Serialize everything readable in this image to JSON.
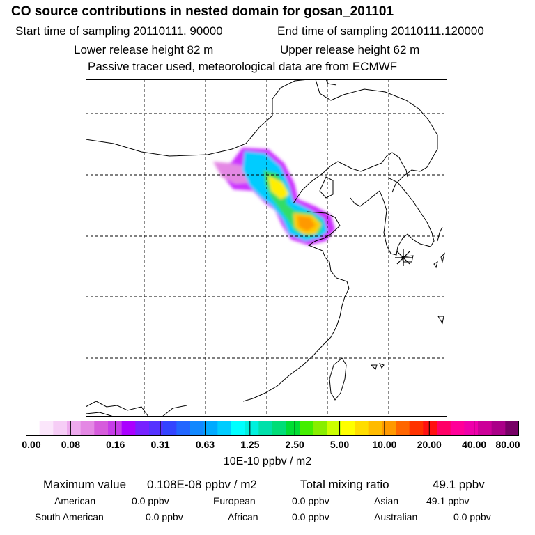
{
  "header": {
    "title": "CO  source contributions in nested domain for gosan_201101",
    "start_label": "Start time of sampling 20110111. 90000",
    "end_label": "End time of sampling 20110111.120000",
    "lower_label": "Lower release height   82 m",
    "upper_label": "Upper release height   62 m",
    "note": "Passive tracer used, meteorological data are from ECMWF"
  },
  "map": {
    "receptor_marker": "star-marker",
    "grid_style": "dashed",
    "plume_colors": [
      "#cc33ff",
      "#00d8ff",
      "#33cc66",
      "#ffee00",
      "#ff9900"
    ]
  },
  "colorbar": {
    "segments": [
      "#ffffff",
      "#fbe6fb",
      "#f6cdf6",
      "#eeaaee",
      "#e488e4",
      "#d65cdc",
      "#c63ce8",
      "#aa00ff",
      "#7722ff",
      "#5533ff",
      "#3344ff",
      "#2266ff",
      "#1188ff",
      "#00aaff",
      "#00ccff",
      "#00ffff",
      "#00f0dd",
      "#00e0aa",
      "#00dd77",
      "#00dd33",
      "#44ee00",
      "#88ee00",
      "#ccff00",
      "#ffff00",
      "#ffdd00",
      "#ffbb00",
      "#ff9900",
      "#ff6600",
      "#ff3300",
      "#ff1111",
      "#ff0066",
      "#ff0099",
      "#ee00aa",
      "#cc0099",
      "#aa0088",
      "#770066"
    ],
    "ticks": [
      "0.00",
      "0.08",
      "0.16",
      "0.31",
      "0.63",
      "1.25",
      "2.50",
      "5.00",
      "10.00",
      "20.00",
      "40.00",
      "80.00"
    ],
    "units": "10E-10 ppbv / m2"
  },
  "stats": {
    "max_label": "Maximum value",
    "max_value": "0.108E-08 ppbv / m2",
    "total_label": "Total mixing ratio",
    "total_value": "49.1 ppbv",
    "regions": [
      {
        "name": "American",
        "value": "0.0 ppbv"
      },
      {
        "name": "European",
        "value": "0.0 ppbv"
      },
      {
        "name": "Asian",
        "value": "49.1 ppbv"
      },
      {
        "name": "South American",
        "value": "0.0 ppbv"
      },
      {
        "name": "African",
        "value": "0.0 ppbv"
      },
      {
        "name": "Australian",
        "value": "0.0 ppbv"
      }
    ]
  }
}
